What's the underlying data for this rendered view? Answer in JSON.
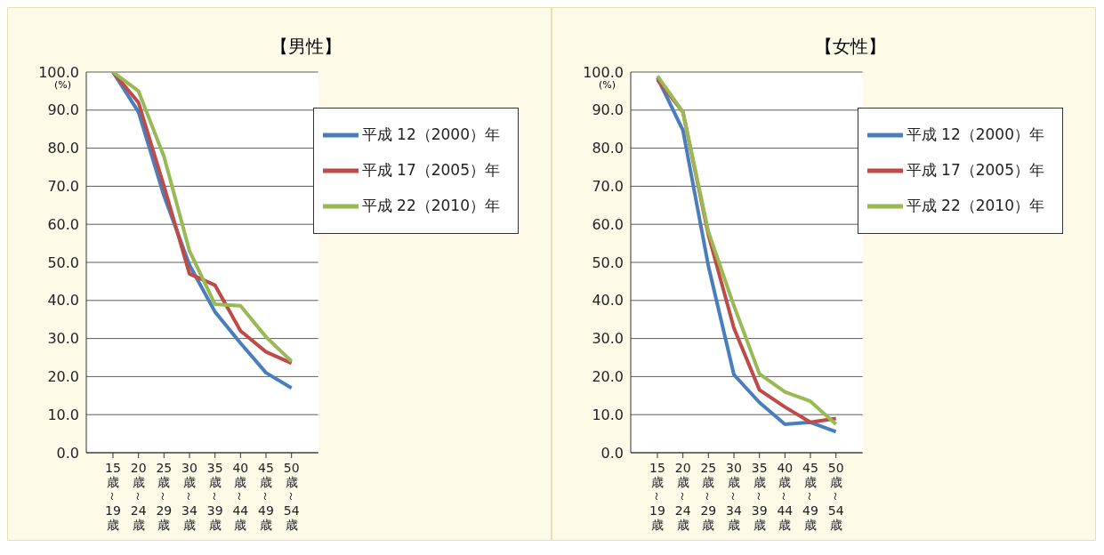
{
  "chart_data": [
    {
      "type": "line",
      "title": "【男性】",
      "ylabel": "(%)",
      "categories": [
        "15歳～19歳",
        "20歳～24歳",
        "25歳～29歳",
        "30歳～34歳",
        "35歳～39歳",
        "40歳～44歳",
        "45歳～49歳",
        "50歳～54歳"
      ],
      "series": [
        {
          "name": "平成 12（2000）年",
          "color": "#4a7ebb",
          "values": [
            100,
            89.5,
            67.5,
            49.3,
            37,
            28.8,
            21,
            17
          ]
        },
        {
          "name": "平成 17（2005）年",
          "color": "#be4b48",
          "values": [
            100,
            92,
            70,
            47,
            44,
            32,
            26.5,
            23.5
          ]
        },
        {
          "name": "平成 22（2010）年",
          "color": "#98b954",
          "values": [
            100,
            95,
            77.8,
            53,
            39,
            38.6,
            30.4,
            24
          ]
        }
      ],
      "ylim": [
        0,
        100
      ],
      "yticks": [
        {
          "value": 0,
          "label": "0.0"
        },
        {
          "value": 10,
          "label": "10.0"
        },
        {
          "value": 20,
          "label": "20.0"
        },
        {
          "value": 30,
          "label": "30.0"
        },
        {
          "value": 40,
          "label": "40.0"
        },
        {
          "value": 50,
          "label": "50.0"
        },
        {
          "value": 60,
          "label": "60.0"
        },
        {
          "value": 70,
          "label": "70.0"
        },
        {
          "value": 80,
          "label": "80.0"
        },
        {
          "value": 90,
          "label": "90.0"
        },
        {
          "value": 100,
          "label": "100.0"
        }
      ],
      "grid": "y",
      "legend": "top right",
      "marker": "none",
      "line_style": "solid"
    },
    {
      "type": "line",
      "title": "【女性】",
      "ylabel": "(%)",
      "categories": [
        "15歳～19歳",
        "20歳～24歳",
        "25歳～29歳",
        "30歳～34歳",
        "35歳～39歳",
        "40歳～44歳",
        "45歳～49歳",
        "50歳～54歳"
      ],
      "series": [
        {
          "name": "平成 12（2000）年",
          "color": "#4a7ebb",
          "values": [
            98.5,
            84.7,
            49,
            20.5,
            13.2,
            7.5,
            8,
            5.5
          ]
        },
        {
          "name": "平成 17（2005）年",
          "color": "#be4b48",
          "values": [
            98,
            89.5,
            57.2,
            32.7,
            16.5,
            12,
            8,
            9
          ]
        },
        {
          "name": "平成 22（2010）年",
          "color": "#98b954",
          "values": [
            99,
            89.5,
            58,
            38.6,
            20.7,
            16,
            13.5,
            7.5
          ]
        }
      ],
      "ylim": [
        0,
        100
      ],
      "yticks": [
        {
          "value": 0,
          "label": "0.0"
        },
        {
          "value": 10,
          "label": "10.0"
        },
        {
          "value": 20,
          "label": "20.0"
        },
        {
          "value": 30,
          "label": "30.0"
        },
        {
          "value": 40,
          "label": "40.0"
        },
        {
          "value": 50,
          "label": "50.0"
        },
        {
          "value": 60,
          "label": "60.0"
        },
        {
          "value": 70,
          "label": "70.0"
        },
        {
          "value": 80,
          "label": "80.0"
        },
        {
          "value": 90,
          "label": "90.0"
        },
        {
          "value": 100,
          "label": "100.0"
        }
      ],
      "grid": "y",
      "legend": "top right",
      "marker": "none",
      "line_style": "solid"
    }
  ]
}
